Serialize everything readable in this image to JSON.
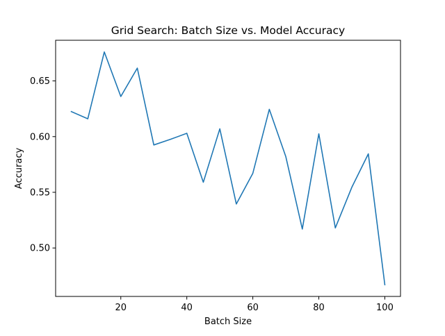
{
  "chart_data": {
    "type": "line",
    "title": "Grid Search: Batch Size vs. Model Accuracy",
    "xlabel": "Batch Size",
    "ylabel": "Accuracy",
    "x": [
      5,
      10,
      15,
      20,
      25,
      30,
      35,
      40,
      45,
      50,
      55,
      60,
      65,
      70,
      75,
      80,
      85,
      90,
      95,
      100
    ],
    "series": [
      {
        "name": "",
        "values": [
          0.6225,
          0.616,
          0.676,
          0.636,
          0.6615,
          0.5925,
          0.5975,
          0.603,
          0.559,
          0.607,
          0.5395,
          0.567,
          0.6245,
          0.582,
          0.517,
          0.6025,
          0.518,
          0.5545,
          0.5845,
          0.467
        ],
        "color": "#1f77b4"
      }
    ],
    "xlim": [
      0.25,
      104.75
    ],
    "ylim": [
      0.4565,
      0.6865
    ],
    "xticks": [
      20,
      40,
      60,
      80,
      100
    ],
    "yticks": [
      0.5,
      0.55,
      0.6,
      0.65
    ],
    "xtick_labels": [
      "20",
      "40",
      "60",
      "80",
      "100"
    ],
    "ytick_labels": [
      "0.50",
      "0.55",
      "0.60",
      "0.65"
    ],
    "grid": false,
    "legend": "none"
  }
}
